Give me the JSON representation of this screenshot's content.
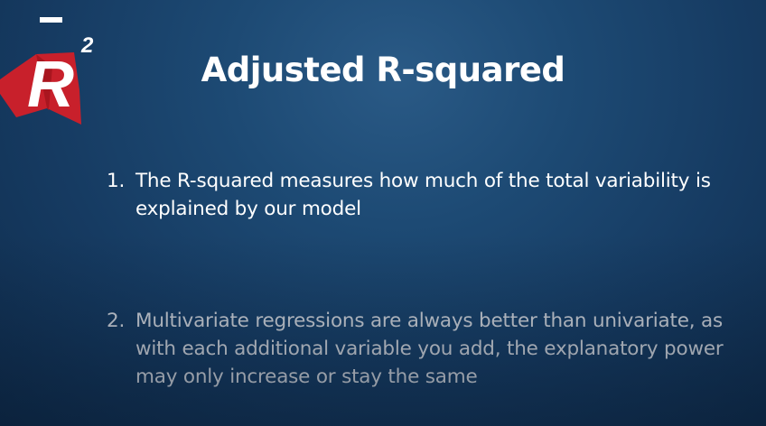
{
  "logo": {
    "letter": "R",
    "superscript": "2",
    "cape_color": "#c8202b",
    "name": "adjusted-r-squared-logo"
  },
  "slide": {
    "title": "Adjusted R-squared",
    "points": [
      {
        "number": "1.",
        "text": "The R-squared measures how much of the total variability is explained by our model",
        "color": "#ffffff"
      },
      {
        "number": "2.",
        "text": "Multivariate regressions are always better than univariate, as with each additional variable you add, the explanatory power may only increase or stay the same",
        "color": "#c9ced6"
      }
    ]
  }
}
